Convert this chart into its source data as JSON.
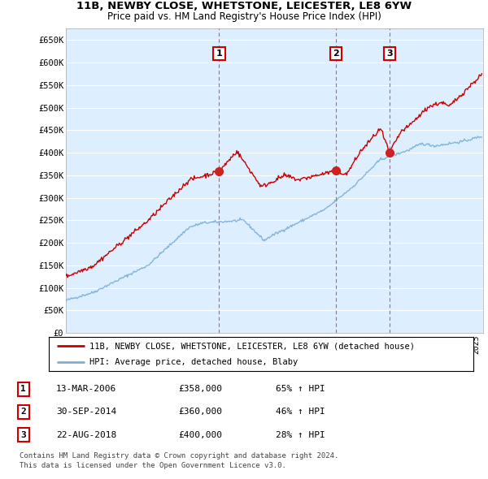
{
  "title1": "11B, NEWBY CLOSE, WHETSTONE, LEICESTER, LE8 6YW",
  "title2": "Price paid vs. HM Land Registry's House Price Index (HPI)",
  "ylabel_ticks": [
    "£0",
    "£50K",
    "£100K",
    "£150K",
    "£200K",
    "£250K",
    "£300K",
    "£350K",
    "£400K",
    "£450K",
    "£500K",
    "£550K",
    "£600K",
    "£650K"
  ],
  "ytick_vals": [
    0,
    50000,
    100000,
    150000,
    200000,
    250000,
    300000,
    350000,
    400000,
    450000,
    500000,
    550000,
    600000,
    650000
  ],
  "xlim_start": 1995.0,
  "xlim_end": 2025.5,
  "ylim_min": 0,
  "ylim_max": 675000,
  "sale_dates": [
    2006.2,
    2014.75,
    2018.65
  ],
  "sale_prices": [
    358000,
    360000,
    400000
  ],
  "sale_labels": [
    "1",
    "2",
    "3"
  ],
  "vline_dates": [
    2006.2,
    2014.75,
    2018.65
  ],
  "legend_line1": "11B, NEWBY CLOSE, WHETSTONE, LEICESTER, LE8 6YW (detached house)",
  "legend_line2": "HPI: Average price, detached house, Blaby",
  "table_rows": [
    [
      "1",
      "13-MAR-2006",
      "£358,000",
      "65% ↑ HPI"
    ],
    [
      "2",
      "30-SEP-2014",
      "£360,000",
      "46% ↑ HPI"
    ],
    [
      "3",
      "22-AUG-2018",
      "£400,000",
      "28% ↑ HPI"
    ]
  ],
  "footnote1": "Contains HM Land Registry data © Crown copyright and database right 2024.",
  "footnote2": "This data is licensed under the Open Government Licence v3.0.",
  "hpi_color": "#7bafd4",
  "sale_color": "#cc0000",
  "background_chart": "#ddeeff",
  "grid_color": "#ffffff",
  "vline_color": "#dd5555"
}
